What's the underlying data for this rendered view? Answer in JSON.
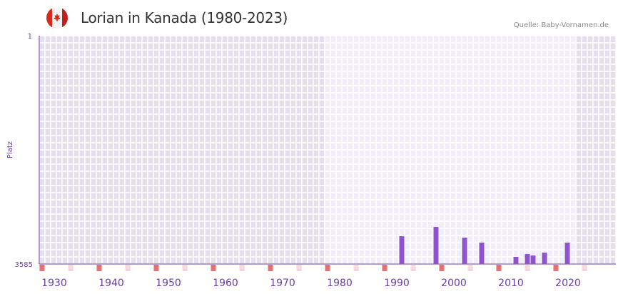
{
  "header": {
    "title": "Lorian in Kanada (1980-2023)",
    "source": "Quelle: Baby-Vornamen.de",
    "flag_icon": "canada-flag-icon"
  },
  "chart_data": {
    "type": "bar",
    "title": "Lorian in Kanada (1980-2023)",
    "xlabel": "",
    "ylabel": "Platz",
    "xlim": [
      1928,
      2028
    ],
    "ylim": [
      3585,
      1
    ],
    "y_ticks": [
      "1",
      "3585"
    ],
    "x_ticks": [
      1930,
      1940,
      1950,
      1960,
      1970,
      1980,
      1990,
      2000,
      2010,
      2020
    ],
    "highlight_range": [
      1978,
      2021
    ],
    "x": [
      1991,
      1997,
      2002,
      2005,
      2011,
      2013,
      2014,
      2016,
      2020
    ],
    "values": [
      3148,
      3003,
      3171,
      3249,
      3473,
      3428,
      3451,
      3406,
      3249
    ],
    "colors": {
      "bar": "#8e55c8",
      "axis": "#6a3fa0",
      "shade_dark": "#e3dfec",
      "shade_light": "#f1eefa",
      "marker_red": "#e3727a",
      "marker_pink": "#f5d7df"
    }
  }
}
